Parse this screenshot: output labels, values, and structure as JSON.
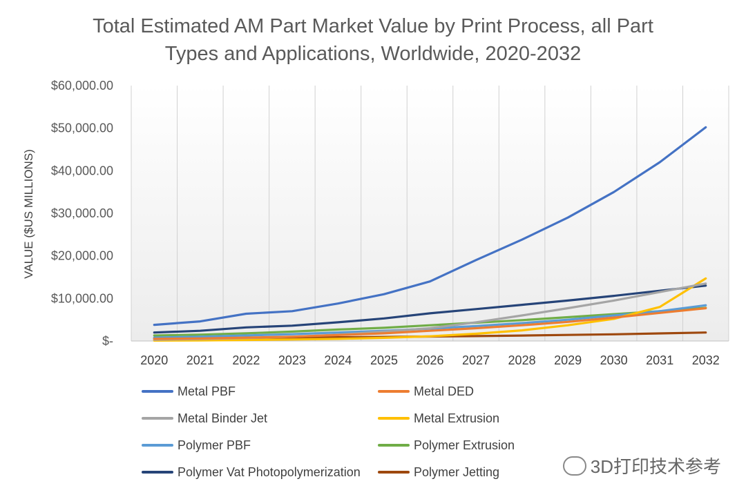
{
  "chart_data": {
    "type": "line",
    "title": "Total Estimated AM Part Market Value by Print Process, all Part Types and Applications, Worldwide, 2020-2032",
    "title_lines": [
      "Total Estimated AM Part Market Value by Print Process, all Part",
      "Types and Applications, Worldwide, 2020-2032"
    ],
    "xlabel": "",
    "ylabel": "VALUE ($US MILLIONS)",
    "ylim": [
      0,
      60000
    ],
    "ytick_values": [
      0,
      10000,
      20000,
      30000,
      40000,
      50000,
      60000
    ],
    "ytick_labels": [
      "$-",
      "$10,000.00",
      "$20,000.00",
      "$30,000.00",
      "$40,000.00",
      "$50,000.00",
      "$60,000.00"
    ],
    "categories": [
      "2020",
      "2021",
      "2022",
      "2023",
      "2024",
      "2025",
      "2026",
      "2027",
      "2028",
      "2029",
      "2030",
      "2031",
      "2032"
    ],
    "grid": "vertical",
    "legend_position": "bottom",
    "series": [
      {
        "name": "Metal PBF",
        "color": "#4472C4",
        "values": [
          3800,
          4600,
          6400,
          7000,
          8800,
          11000,
          14000,
          19000,
          23800,
          29000,
          35000,
          42000,
          50200
        ]
      },
      {
        "name": "Metal DED",
        "color": "#ED7D31",
        "values": [
          500,
          600,
          800,
          1000,
          1400,
          1800,
          2400,
          3000,
          3700,
          4500,
          5500,
          6600,
          7700
        ]
      },
      {
        "name": "Metal Binder Jet",
        "color": "#A5A5A5",
        "values": [
          300,
          450,
          700,
          1000,
          1500,
          2200,
          3000,
          4400,
          6000,
          7700,
          9500,
          11500,
          13500
        ]
      },
      {
        "name": "Metal Extrusion",
        "color": "#FFC000",
        "values": [
          100,
          150,
          250,
          350,
          500,
          750,
          1100,
          1700,
          2500,
          3700,
          5200,
          8000,
          14700
        ]
      },
      {
        "name": "Polymer PBF",
        "color": "#5B9BD5",
        "values": [
          800,
          1000,
          1300,
          1600,
          2000,
          2400,
          2900,
          3500,
          4200,
          5000,
          6000,
          7000,
          8400
        ]
      },
      {
        "name": "Polymer Extrusion",
        "color": "#70AD47",
        "values": [
          1300,
          1500,
          1800,
          2200,
          2700,
          3100,
          3700,
          4300,
          4900,
          5600,
          6300,
          7000,
          7800
        ]
      },
      {
        "name": "Polymer Vat Photopolymerization",
        "color": "#264478",
        "values": [
          2000,
          2400,
          3200,
          3600,
          4400,
          5300,
          6500,
          7500,
          8500,
          9500,
          10600,
          11800,
          13000
        ]
      },
      {
        "name": "Polymer Jetting",
        "color": "#9E480E",
        "values": [
          600,
          650,
          720,
          800,
          880,
          960,
          1050,
          1150,
          1280,
          1420,
          1580,
          1780,
          2000
        ]
      }
    ]
  },
  "watermark": {
    "text": "3D打印技术参考"
  }
}
